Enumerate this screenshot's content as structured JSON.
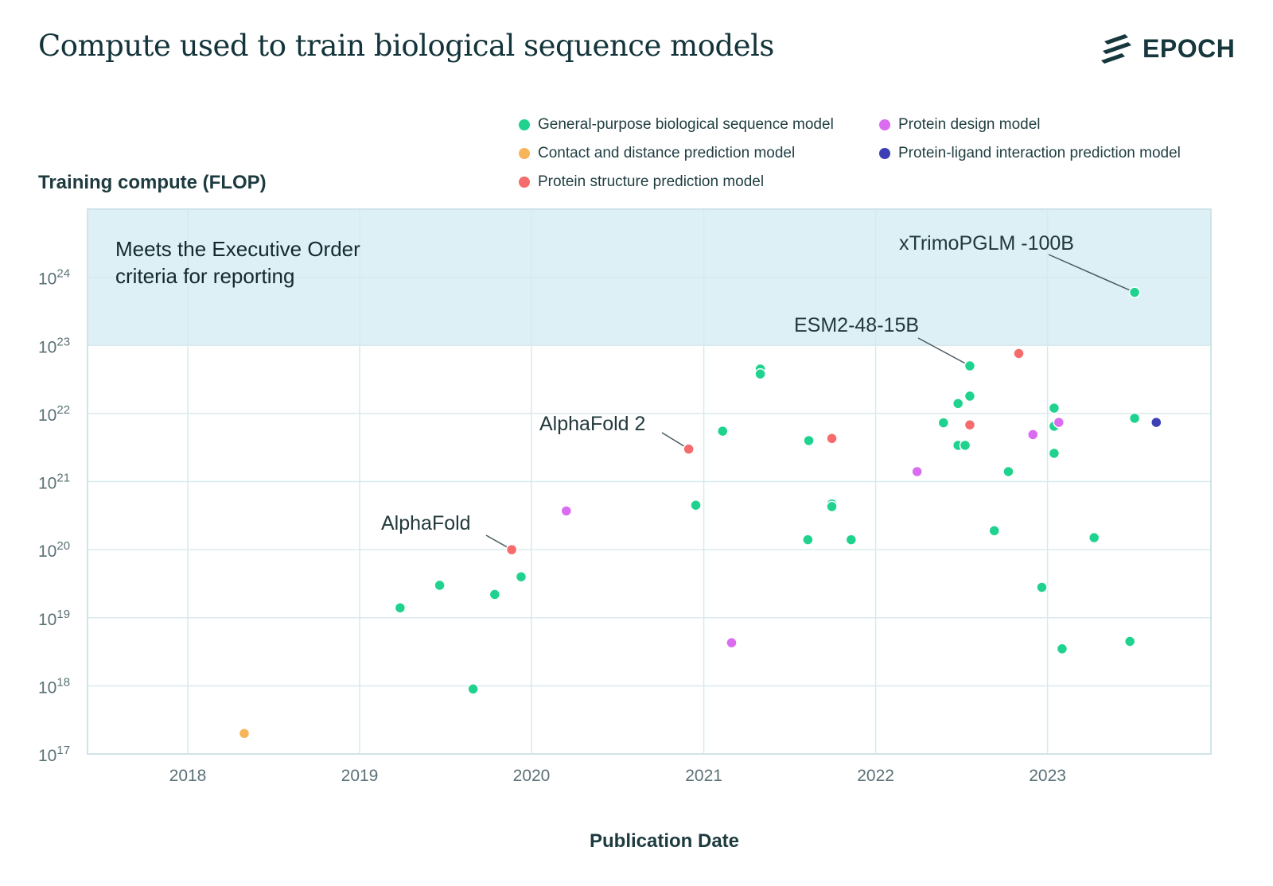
{
  "title": "Compute used to train biological sequence models",
  "logo": {
    "text": "EPOCH",
    "icon": "epoch-stripes-icon"
  },
  "chart_data": {
    "type": "scatter",
    "title": "Compute used to train biological sequence models",
    "xlabel": "Publication Date",
    "ylabel": "Training compute (FLOP)",
    "yscale": "log",
    "xlim": [
      "2017-06-01",
      "2023-12-01"
    ],
    "ylim": [
      1e+17,
      1e+25
    ],
    "x_ticks": [
      "2018",
      "2019",
      "2020",
      "2021",
      "2022",
      "2023"
    ],
    "y_ticks": [
      {
        "base": "10",
        "exp": "17"
      },
      {
        "base": "10",
        "exp": "18"
      },
      {
        "base": "10",
        "exp": "19"
      },
      {
        "base": "10",
        "exp": "20"
      },
      {
        "base": "10",
        "exp": "21"
      },
      {
        "base": "10",
        "exp": "22"
      },
      {
        "base": "10",
        "exp": "23"
      },
      {
        "base": "10",
        "exp": "24"
      }
    ],
    "grid": true,
    "legend_position": "top-right",
    "threshold_band": {
      "from": 1e+23,
      "label_line1": "Meets the Executive Order",
      "label_line2": "criteria for reporting",
      "color": "#dcf0f6"
    },
    "series": [
      {
        "name": "General-purpose biological sequence model",
        "color": "#1fd38f",
        "points": [
          {
            "x": "2019-03-28",
            "y": 1.4e+19
          },
          {
            "x": "2019-06-20",
            "y": 3e+19
          },
          {
            "x": "2019-08-30",
            "y": 9e+17
          },
          {
            "x": "2019-10-15",
            "y": 2.2e+19
          },
          {
            "x": "2019-12-10",
            "y": 4e+19
          },
          {
            "x": "2020-12-15",
            "y": 4.5e+20
          },
          {
            "x": "2021-02-10",
            "y": 5.5e+21
          },
          {
            "x": "2021-05-01",
            "y": 4.5e+22
          },
          {
            "x": "2021-05-01",
            "y": 3.8e+22
          },
          {
            "x": "2021-08-10",
            "y": 1.4e+20
          },
          {
            "x": "2021-08-12",
            "y": 4e+21
          },
          {
            "x": "2021-09-30",
            "y": 4.7e+20
          },
          {
            "x": "2021-09-30",
            "y": 4.3e+20
          },
          {
            "x": "2021-11-10",
            "y": 1.4e+20
          },
          {
            "x": "2022-05-25",
            "y": 7.3e+21
          },
          {
            "x": "2022-06-25",
            "y": 3.4e+21
          },
          {
            "x": "2022-06-25",
            "y": 1.4e+22
          },
          {
            "x": "2022-07-10",
            "y": 3.4e+21
          },
          {
            "x": "2022-07-20",
            "y": 5e+22,
            "label": "ESM2-48-15B"
          },
          {
            "x": "2022-07-20",
            "y": 1.8e+22
          },
          {
            "x": "2022-09-10",
            "y": 1.9e+20
          },
          {
            "x": "2022-10-10",
            "y": 1.4e+21
          },
          {
            "x": "2022-12-20",
            "y": 2.8e+19
          },
          {
            "x": "2023-01-15",
            "y": 1.2e+22
          },
          {
            "x": "2023-01-15",
            "y": 6.5e+21
          },
          {
            "x": "2023-01-15",
            "y": 2.6e+21
          },
          {
            "x": "2023-02-01",
            "y": 3.5e+18
          },
          {
            "x": "2023-04-10",
            "y": 1.5e+20
          },
          {
            "x": "2023-06-25",
            "y": 4.5e+18
          },
          {
            "x": "2023-07-05",
            "y": 6e+23,
            "label": "xTrimoPGLM -100B"
          },
          {
            "x": "2023-07-05",
            "y": 8.5e+21
          }
        ]
      },
      {
        "name": "Contact and distance prediction model",
        "color": "#f8b458",
        "points": [
          {
            "x": "2018-05-01",
            "y": 2e+17
          }
        ]
      },
      {
        "name": "Protein structure prediction model",
        "color": "#f66b6b",
        "points": [
          {
            "x": "2019-11-20",
            "y": 1e+20,
            "label": "AlphaFold"
          },
          {
            "x": "2020-11-30",
            "y": 3e+21,
            "label": "AlphaFold 2"
          },
          {
            "x": "2021-09-30",
            "y": 4.3e+21
          },
          {
            "x": "2022-07-20",
            "y": 6.8e+21
          },
          {
            "x": "2022-11-01",
            "y": 7.6e+22
          }
        ]
      },
      {
        "name": "Protein design model",
        "color": "#d96cf1",
        "points": [
          {
            "x": "2020-03-15",
            "y": 3.7e+20
          },
          {
            "x": "2021-03-01",
            "y": 4.3e+18
          },
          {
            "x": "2022-03-30",
            "y": 1.4e+21
          },
          {
            "x": "2022-12-01",
            "y": 4.9e+21
          },
          {
            "x": "2023-01-25",
            "y": 7.4e+21
          }
        ]
      },
      {
        "name": "Protein-ligand interaction prediction model",
        "color": "#3d3fb5",
        "points": [
          {
            "x": "2023-08-20",
            "y": 7.4e+21
          }
        ]
      }
    ]
  }
}
